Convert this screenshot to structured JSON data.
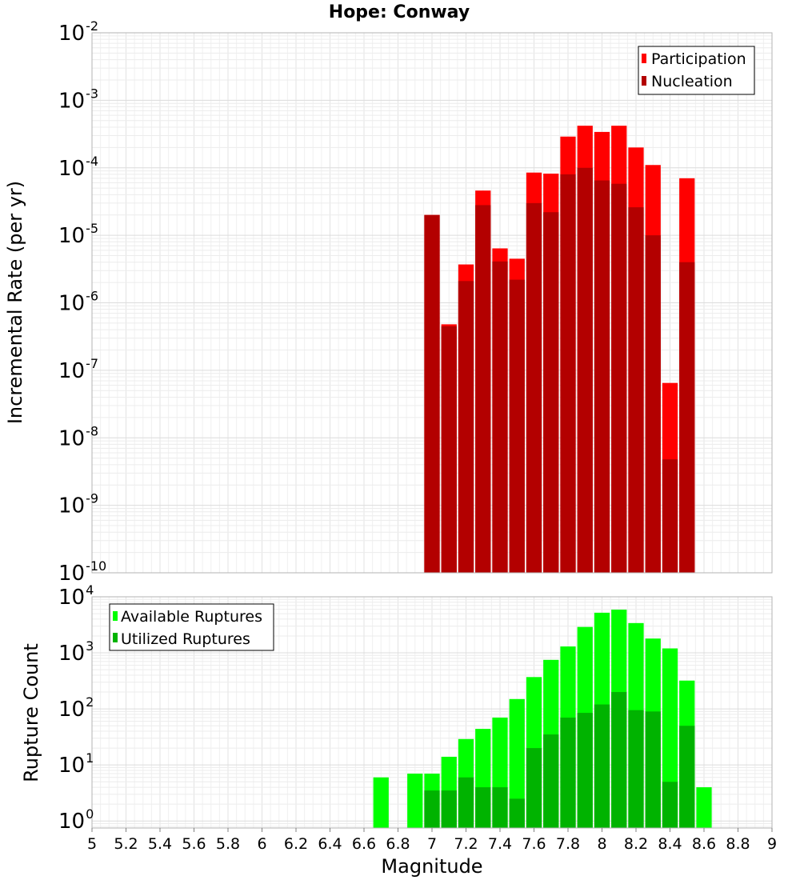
{
  "chart_data": [
    {
      "type": "bar",
      "title": "Hope: Conway",
      "xlabel": "",
      "ylabel": "Incremental Rate (per yr)",
      "yscale": "log",
      "xlim": [
        5,
        9
      ],
      "ylim": [
        1e-10,
        0.01
      ],
      "x_tick_step": 0.2,
      "bar_width": 0.1,
      "grid": true,
      "legend_position": "top-right",
      "x": [
        7.0,
        7.1,
        7.2,
        7.3,
        7.4,
        7.5,
        7.6,
        7.7,
        7.8,
        7.9,
        8.0,
        8.1,
        8.2,
        8.3,
        8.4,
        8.5
      ],
      "series": [
        {
          "name": "Participation",
          "color": "#ff0000",
          "values": [
            2e-05,
            4.8e-07,
            3.7e-06,
            4.6e-05,
            6.4e-06,
            4.5e-06,
            8.5e-05,
            8.2e-05,
            0.00029,
            0.00042,
            0.00034,
            0.00042,
            0.0002,
            0.00011,
            6.5e-08,
            7e-05
          ]
        },
        {
          "name": "Nucleation",
          "color": "#b30000",
          "values": [
            2e-05,
            4.5e-07,
            2.1e-06,
            2.8e-05,
            4.1e-06,
            2.2e-06,
            3e-05,
            2.2e-05,
            8e-05,
            0.0001,
            6.5e-05,
            5.8e-05,
            2.6e-05,
            1e-05,
            4.8e-09,
            4e-06
          ]
        }
      ]
    },
    {
      "type": "bar",
      "title": "",
      "xlabel": "Magnitude",
      "ylabel": "Rupture Count",
      "yscale": "log",
      "xlim": [
        5,
        9
      ],
      "ylim": [
        0.75,
        10000
      ],
      "x_tick_step": 0.2,
      "bar_width": 0.1,
      "grid": true,
      "legend_position": "top-left",
      "x": [
        6.7,
        6.8,
        6.9,
        7.0,
        7.1,
        7.2,
        7.3,
        7.4,
        7.5,
        7.6,
        7.7,
        7.8,
        7.9,
        8.0,
        8.1,
        8.2,
        8.3,
        8.4,
        8.5,
        8.6
      ],
      "series": [
        {
          "name": "Available Ruptures",
          "color": "#00ff00",
          "values": [
            6,
            0,
            7,
            7,
            14,
            29,
            44,
            70,
            150,
            370,
            750,
            1300,
            2900,
            5200,
            5900,
            3400,
            1800,
            1200,
            320,
            4
          ]
        },
        {
          "name": "Utilized Ruptures",
          "color": "#00b300",
          "values": [
            0,
            0,
            0,
            3.5,
            3.5,
            6,
            4,
            4,
            2.5,
            20,
            35,
            70,
            85,
            120,
            200,
            95,
            90,
            5,
            50,
            0
          ]
        }
      ]
    }
  ]
}
